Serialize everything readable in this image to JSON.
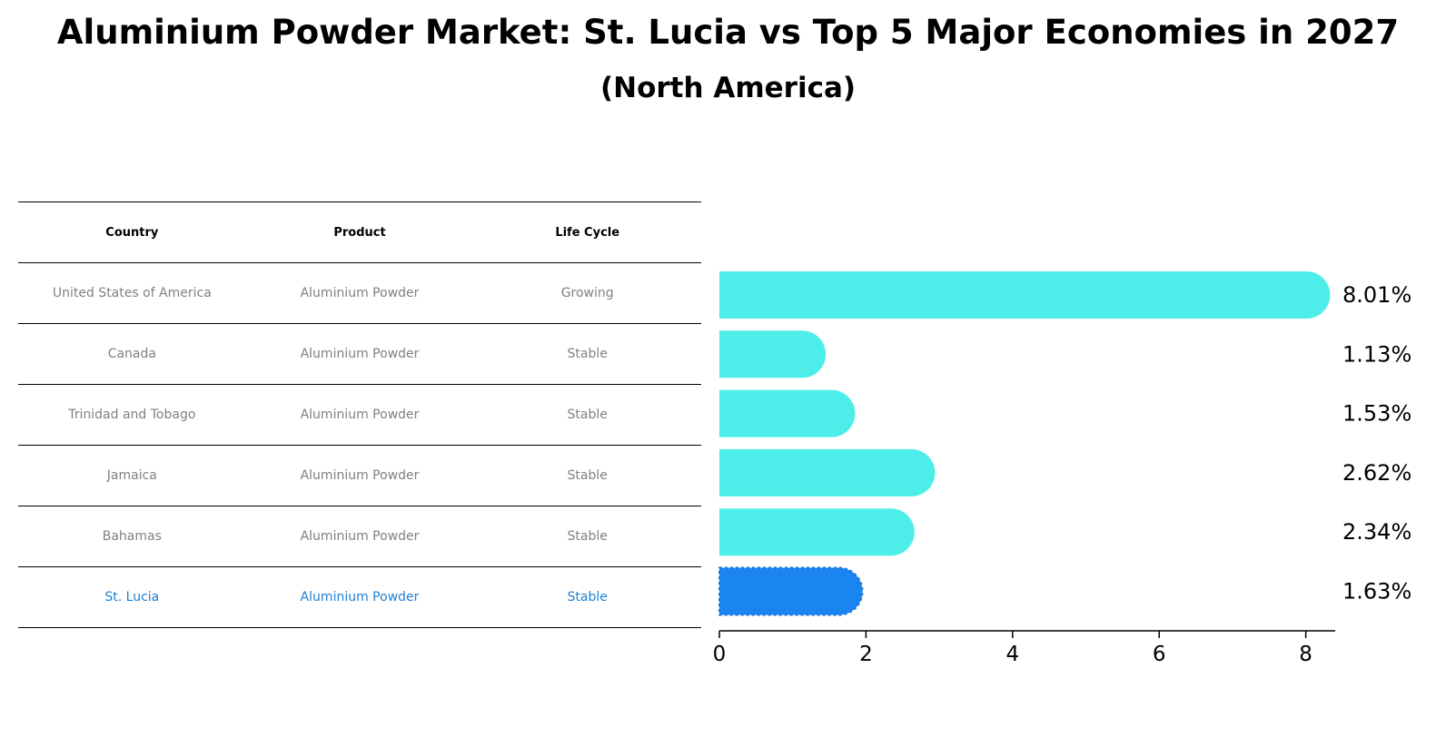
{
  "title": "Aluminium Powder Market: St. Lucia vs Top 5 Major Economies in 2027",
  "subtitle": "(North America)",
  "table": {
    "headers": [
      "Country",
      "Product",
      "Life Cycle"
    ],
    "rows": [
      {
        "country": "United States of America",
        "product": "Aluminium Powder",
        "life_cycle": "Growing"
      },
      {
        "country": "Canada",
        "product": "Aluminium Powder",
        "life_cycle": "Stable"
      },
      {
        "country": "Trinidad and Tobago",
        "product": "Aluminium Powder",
        "life_cycle": "Stable"
      },
      {
        "country": "Jamaica",
        "product": "Aluminium Powder",
        "life_cycle": "Stable"
      },
      {
        "country": "Bahamas",
        "product": "Aluminium Powder",
        "life_cycle": "Stable"
      },
      {
        "country": "St. Lucia",
        "product": "Aluminium Powder",
        "life_cycle": "Stable"
      }
    ]
  },
  "chart_data": {
    "type": "bar",
    "orientation": "horizontal",
    "categories": [
      "United States of America",
      "Canada",
      "Trinidad and Tobago",
      "Jamaica",
      "Bahamas",
      "St. Lucia"
    ],
    "values": [
      8.01,
      1.13,
      1.53,
      2.62,
      2.34,
      1.63
    ],
    "value_labels": [
      "8.01%",
      "1.13%",
      "1.53%",
      "2.62%",
      "2.34%",
      "1.63%"
    ],
    "highlight_index": 5,
    "xticks": [
      0,
      2,
      4,
      6,
      8
    ],
    "xlim": [
      0,
      8.4
    ],
    "colors": {
      "default": "#4deeea",
      "highlight": "#1a85f0"
    }
  }
}
